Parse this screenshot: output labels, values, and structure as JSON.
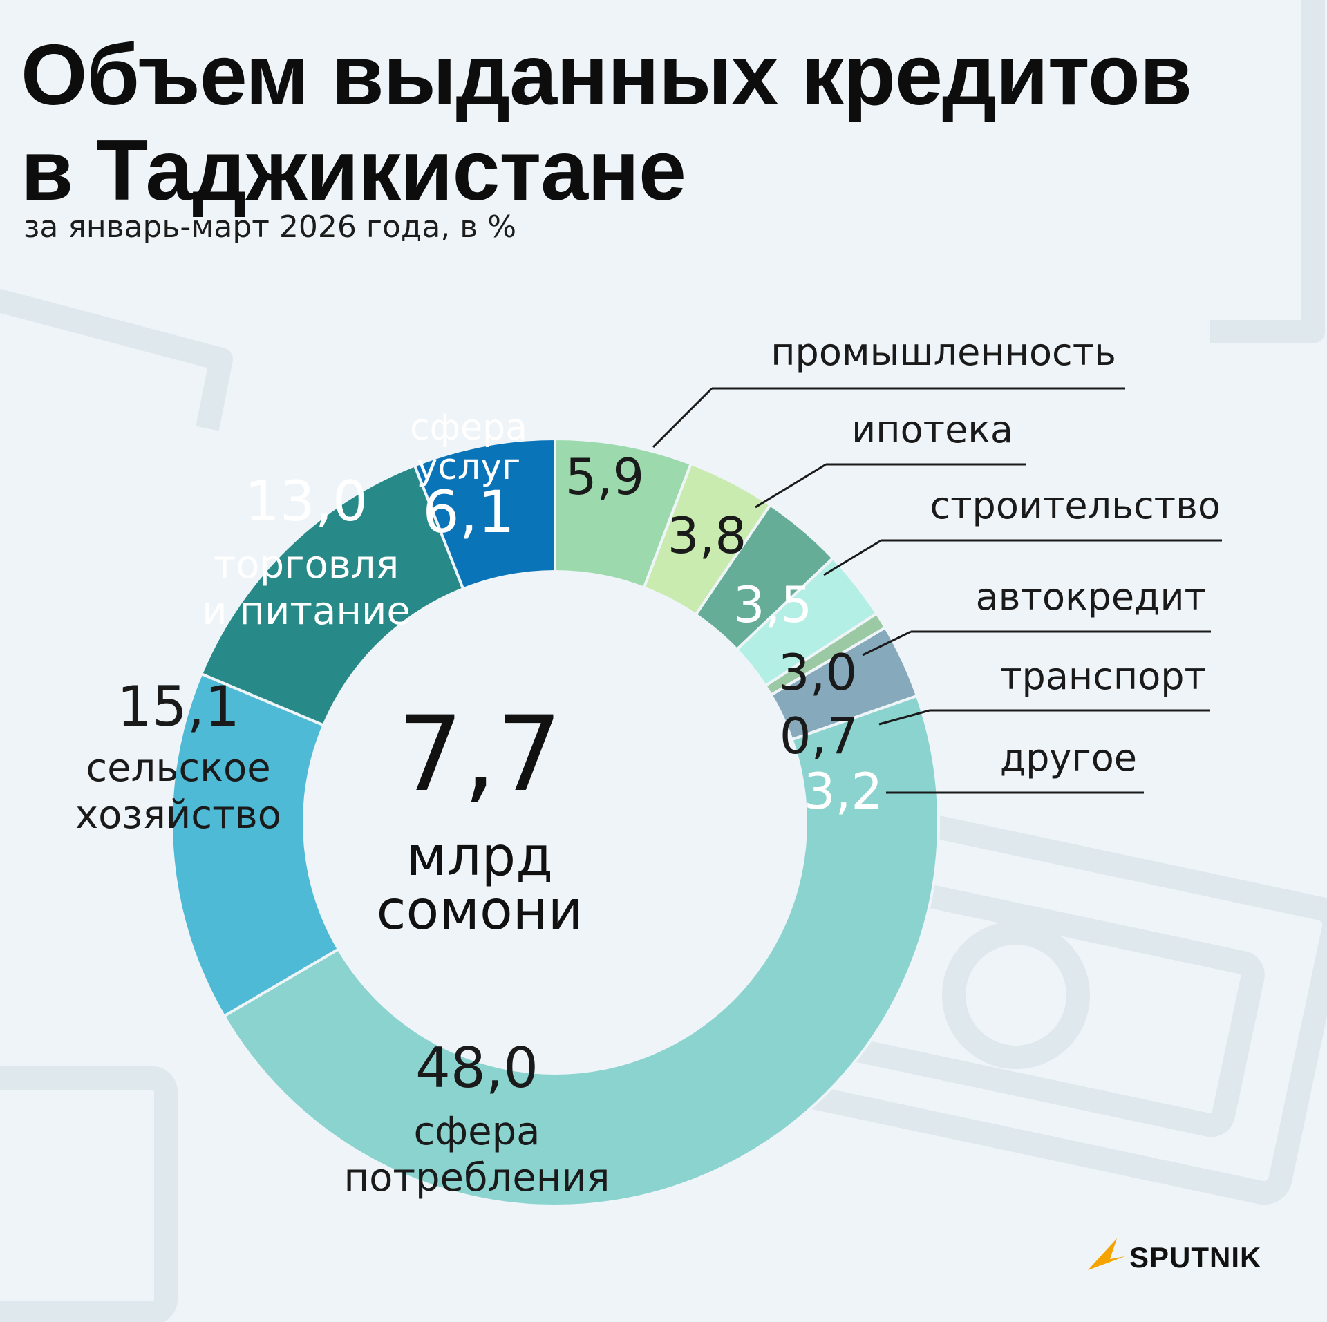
{
  "header": {
    "title_line1": "Объем выданных кредитов",
    "title_line2": "в Таджикистане",
    "subtitle": "за январь-март 2026 года, в %"
  },
  "center": {
    "value": "7,7",
    "unit_line1": "млрд",
    "unit_line2": "сомони"
  },
  "brand": {
    "name": "SPUTNIK",
    "logo_color": "#f5a300"
  },
  "chart_data": {
    "type": "pie",
    "donut": true,
    "title": "Объем выданных кредитов в Таджикистане",
    "subtitle": "за январь-март 2026 года, в %",
    "total": "7,7 млрд сомони",
    "slices": [
      {
        "key": "industry",
        "label": "промышленность",
        "label_lines": [
          "промышленность"
        ],
        "value": 5.9,
        "value_text": "5,9",
        "color": "#9cd9ad",
        "text_color": "#1a1a1a"
      },
      {
        "key": "mortgage",
        "label": "ипотека",
        "label_lines": [
          "ипотека"
        ],
        "value": 3.8,
        "value_text": "3,8",
        "color": "#c9ebb0",
        "text_color": "#1a1a1a"
      },
      {
        "key": "construction",
        "label": "строительство",
        "label_lines": [
          "строительство"
        ],
        "value": 3.5,
        "value_text": "3,5",
        "color": "#66ad97",
        "text_color": "#ffffff"
      },
      {
        "key": "auto",
        "label": "автокредит",
        "label_lines": [
          "автокредит"
        ],
        "value": 3.0,
        "value_text": "3,0",
        "color": "#b3efe4",
        "text_color": "#1a1a1a"
      },
      {
        "key": "transport",
        "label": "транспорт",
        "label_lines": [
          "транспорт"
        ],
        "value": 0.7,
        "value_text": "0,7",
        "color": "#9bc9a3",
        "text_color": "#1a1a1a"
      },
      {
        "key": "other",
        "label": "другое",
        "label_lines": [
          "другое"
        ],
        "value": 3.2,
        "value_text": "3,2",
        "color": "#86a9bc",
        "text_color": "#ffffff"
      },
      {
        "key": "consumption",
        "label": "сфера потребления",
        "label_lines": [
          "сфера",
          "потребления"
        ],
        "value": 48.0,
        "value_text": "48,0",
        "color": "#8ad3cf",
        "text_color": "#1a1a1a"
      },
      {
        "key": "agriculture",
        "label": "сельское хозяйство",
        "label_lines": [
          "сельское",
          "хозяйство"
        ],
        "value": 15.1,
        "value_text": "15,1",
        "color": "#4fbad6",
        "text_color": "#1a1a1a"
      },
      {
        "key": "trade",
        "label": "торговля и питание",
        "label_lines": [
          "торговля",
          "и питание"
        ],
        "value": 13.0,
        "value_text": "13,0",
        "color": "#278a88",
        "text_color": "#ffffff"
      },
      {
        "key": "services",
        "label": "сфера услуг",
        "label_lines": [
          "сфера",
          "услуг"
        ],
        "value": 6.1,
        "value_text": "6,1",
        "color": "#0a74b9",
        "text_color": "#ffffff"
      }
    ]
  }
}
